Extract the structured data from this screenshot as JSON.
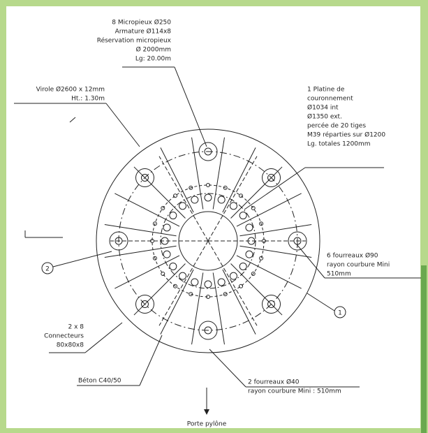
{
  "labels": {
    "micropieux": [
      "8 Micropieux Ø250",
      "Armature Ø114x8",
      "Réservation micropieux",
      "Ø 2000mm",
      "Lg: 20.00m"
    ],
    "virole": [
      "Virole Ø2600 x 12mm",
      "Ht.: 1.30m"
    ],
    "platine": [
      "1 Platine de",
      "couronnement",
      "Ø1034 int",
      "Ø1350 ext.",
      "percée de 20 tiges",
      "M39 réparties sur Ø1200",
      "Lg. totales 1200mm"
    ],
    "fourreaux_90": [
      "6 fourreaux Ø90",
      "rayon courbure Mini",
      "510mm"
    ],
    "connecteurs": [
      "2 x 8",
      "Connecteurs",
      "80x80x8"
    ],
    "beton": [
      "Béton C40/50"
    ],
    "fourreaux_40": [
      "2 fourreaux Ø40",
      "rayon courbure Mini : 510mm"
    ],
    "porte": [
      "Porte pylône"
    ],
    "marker_1": "1",
    "marker_2": "2"
  }
}
